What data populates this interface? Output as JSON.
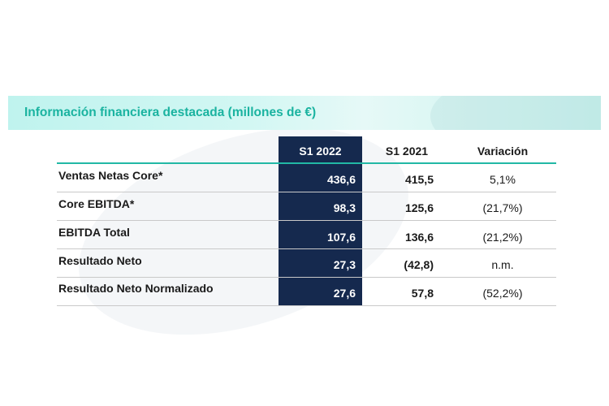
{
  "title": "Información financiera destacada (millones de €)",
  "colors": {
    "accent": "#1ab3a0",
    "navy": "#15294e",
    "banner": "#c9f3ee"
  },
  "table": {
    "headers": [
      "S1 2022",
      "S1 2021",
      "Variación"
    ],
    "rows": [
      {
        "label": "Ventas Netas Core*",
        "s1_2022": "436,6",
        "s1_2021": "415,5",
        "variacion": "5,1%"
      },
      {
        "label": "Core EBITDA*",
        "s1_2022": "98,3",
        "s1_2021": "125,6",
        "variacion": "(21,7%)"
      },
      {
        "label": "EBITDA Total",
        "s1_2022": "107,6",
        "s1_2021": "136,6",
        "variacion": "(21,2%)"
      },
      {
        "label": "Resultado Neto",
        "s1_2022": "27,3",
        "s1_2021": "(42,8)",
        "variacion": "n.m."
      },
      {
        "label": "Resultado Neto Normalizado",
        "s1_2022": "27,6",
        "s1_2021": "57,8",
        "variacion": "(52,2%)"
      }
    ]
  }
}
